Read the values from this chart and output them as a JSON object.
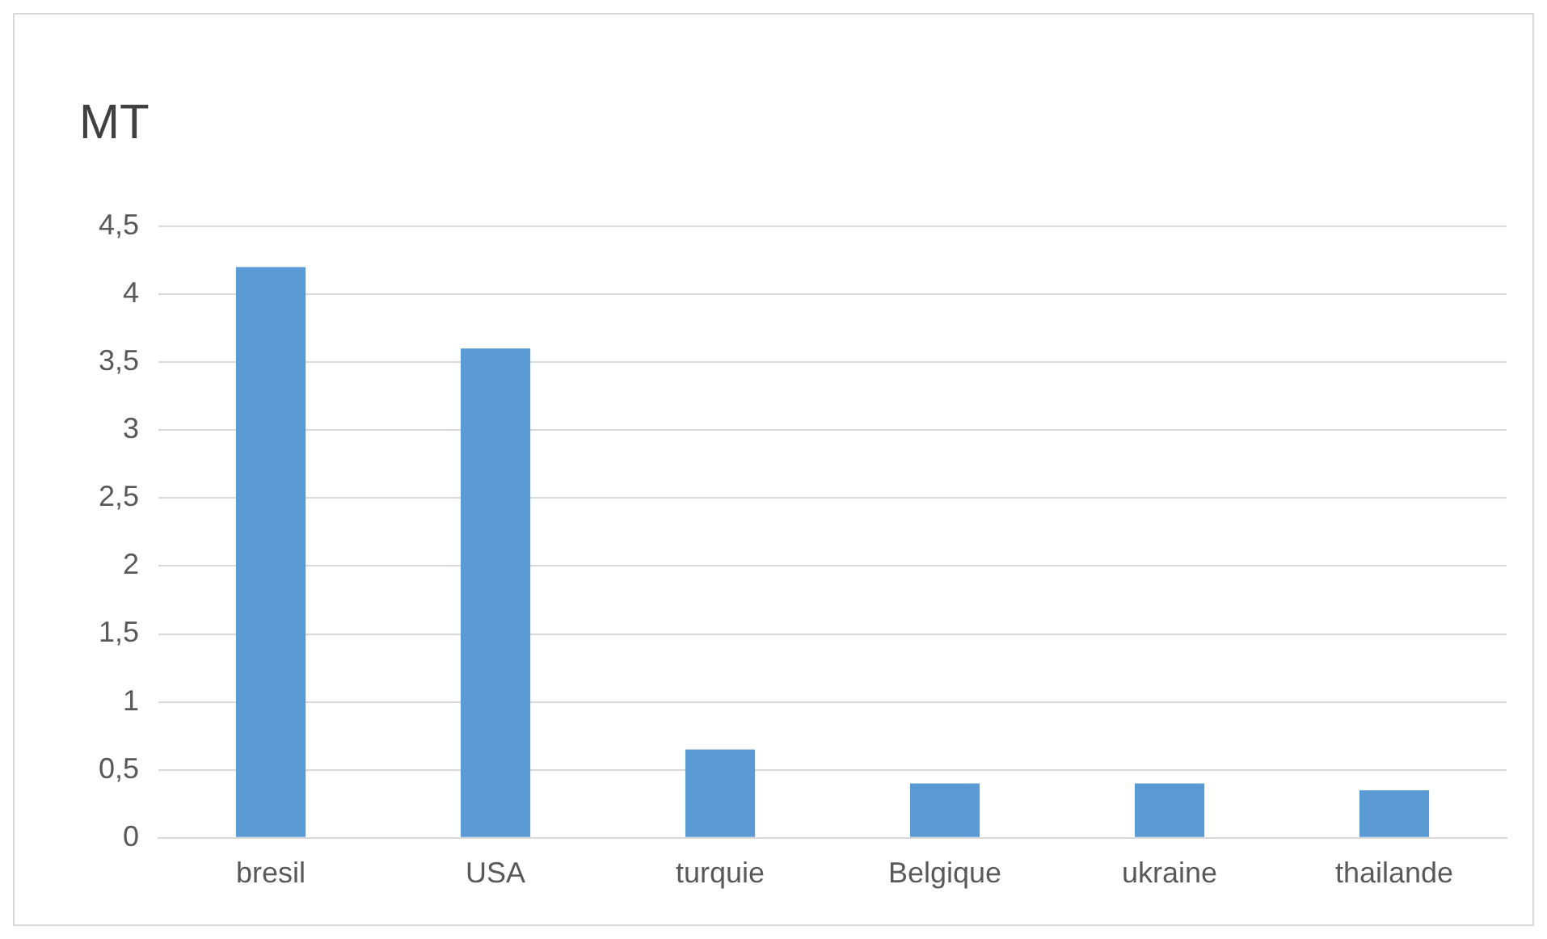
{
  "chart_data": {
    "type": "bar",
    "title": "MT",
    "categories": [
      "bresil",
      "USA",
      "turquie",
      "Belgique",
      "ukraine",
      "thailande"
    ],
    "values": [
      4.2,
      3.6,
      0.65,
      0.4,
      0.4,
      0.35
    ],
    "color": "#5b9bd5",
    "ylim": [
      0,
      4.5
    ],
    "yticks": [
      0,
      {
        "value": 0.5,
        "label": "0,5"
      },
      1,
      {
        "value": 1.5,
        "label": "1,5"
      },
      2,
      {
        "value": 2.5,
        "label": "2,5"
      },
      3,
      {
        "value": 3.5,
        "label": "3,5"
      },
      4,
      {
        "value": 4.5,
        "label": "4,5"
      }
    ],
    "grid": "y",
    "legend": false
  }
}
